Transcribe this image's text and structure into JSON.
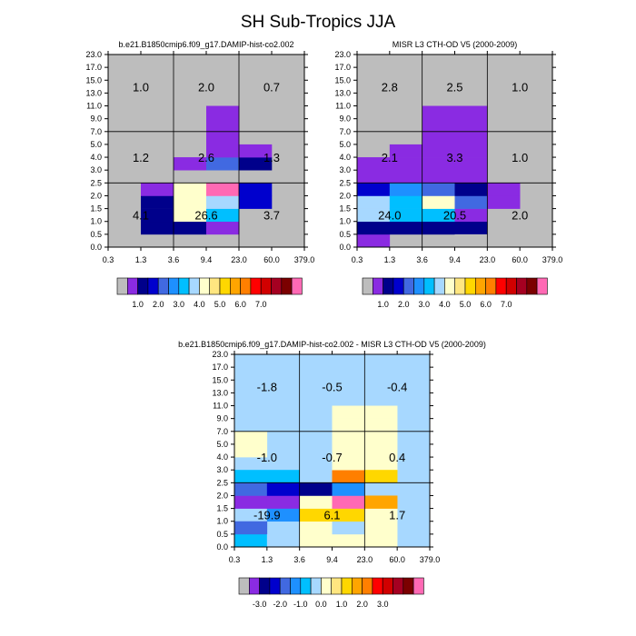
{
  "title": "SH Sub-Tropics JJA",
  "colorbar_top": {
    "colors": [
      "#bdbdbd",
      "#8a2be2",
      "#00008b",
      "#0000cd",
      "#4169e1",
      "#1e90ff",
      "#00bfff",
      "#a7d8ff",
      "#ffffcc",
      "#ffe680",
      "#ffd700",
      "#ffa500",
      "#ff7f00",
      "#ff0000",
      "#d10000",
      "#a50021",
      "#7b0000",
      "#ff69b4"
    ],
    "labels": [
      "1.0",
      "2.0",
      "3.0",
      "4.0",
      "5.0",
      "6.0",
      "7.0"
    ]
  },
  "colorbar_diff": {
    "colors": [
      "#bdbdbd",
      "#8a2be2",
      "#00008b",
      "#0000cd",
      "#4169e1",
      "#1e90ff",
      "#00bfff",
      "#a7d8ff",
      "#ffffcc",
      "#ffe680",
      "#ffd700",
      "#ffa500",
      "#ff7f00",
      "#ff0000",
      "#d10000",
      "#a50021",
      "#7b0000",
      "#ff69b4"
    ],
    "labels": [
      "-3.0",
      "-2.0",
      "-1.0",
      "0.0",
      "1.0",
      "2.0",
      "3.0"
    ]
  },
  "chart_data": [
    {
      "type": "heatmap",
      "title": "b.e21.B1850cmip6.f09_g17.DAMIP-hist-co2.002",
      "x_tick_labels": [
        "0.3",
        "1.3",
        "3.6",
        "9.4",
        "23.0",
        "60.0",
        "379.0"
      ],
      "y_tick_labels": [
        "0.0",
        "0.5",
        "1.0",
        "1.5",
        "2.0",
        "2.5",
        "3.0",
        "4.0",
        "5.0",
        "7.0",
        "9.0",
        "11.0",
        "13.0",
        "15.0",
        "17.0",
        "23.0"
      ],
      "background_color": "#bdbdbd",
      "cells": [
        {
          "x": 1,
          "y": 1,
          "w": 2,
          "h": 1,
          "color": "#00008b"
        },
        {
          "x": 1,
          "y": 2,
          "w": 1,
          "h": 1,
          "color": "#00008b"
        },
        {
          "x": 1,
          "y": 3,
          "w": 1,
          "h": 1,
          "color": "#00008b"
        },
        {
          "x": 1,
          "y": 4,
          "w": 1,
          "h": 1,
          "color": "#8a2be2"
        },
        {
          "x": 2,
          "y": 2,
          "w": 1,
          "h": 2,
          "color": "#ffffcc"
        },
        {
          "x": 2,
          "y": 4,
          "w": 1,
          "h": 1,
          "color": "#ffffcc"
        },
        {
          "x": 2,
          "y": 6,
          "w": 1,
          "h": 1,
          "color": "#8a2be2"
        },
        {
          "x": 3,
          "y": 1,
          "w": 1,
          "h": 1,
          "color": "#8a2be2"
        },
        {
          "x": 3,
          "y": 2,
          "w": 1,
          "h": 1,
          "color": "#00bfff"
        },
        {
          "x": 3,
          "y": 3,
          "w": 1,
          "h": 1,
          "color": "#a7d8ff"
        },
        {
          "x": 3,
          "y": 4,
          "w": 1,
          "h": 1,
          "color": "#ff69b4"
        },
        {
          "x": 3,
          "y": 6,
          "w": 1,
          "h": 1,
          "color": "#4169e1"
        },
        {
          "x": 3,
          "y": 7,
          "w": 1,
          "h": 4,
          "color": "#8a2be2"
        },
        {
          "x": 4,
          "y": 3,
          "w": 1,
          "h": 1,
          "color": "#0000cd"
        },
        {
          "x": 4,
          "y": 4,
          "w": 1,
          "h": 1,
          "color": "#0000cd"
        },
        {
          "x": 4,
          "y": 6,
          "w": 1,
          "h": 1,
          "color": "#00008b"
        },
        {
          "x": 4,
          "y": 7,
          "w": 1,
          "h": 1,
          "color": "#8a2be2"
        }
      ],
      "region_values": [
        {
          "col": 0,
          "row": 0,
          "value": "4.1"
        },
        {
          "col": 1,
          "row": 0,
          "value": "26.6"
        },
        {
          "col": 2,
          "row": 0,
          "value": "3.7"
        },
        {
          "col": 0,
          "row": 1,
          "value": "1.2"
        },
        {
          "col": 1,
          "row": 1,
          "value": "2.6"
        },
        {
          "col": 2,
          "row": 1,
          "value": "1.3"
        },
        {
          "col": 0,
          "row": 2,
          "value": "1.0"
        },
        {
          "col": 1,
          "row": 2,
          "value": "2.0"
        },
        {
          "col": 2,
          "row": 2,
          "value": "0.7"
        }
      ]
    },
    {
      "type": "heatmap",
      "title": "MISR L3 CTH-OD V5 (2000-2009)",
      "x_tick_labels": [
        "0.3",
        "1.3",
        "3.6",
        "9.4",
        "23.0",
        "60.0",
        "379.0"
      ],
      "y_tick_labels": [
        "0.0",
        "0.5",
        "1.0",
        "1.5",
        "2.0",
        "2.5",
        "3.0",
        "4.0",
        "5.0",
        "7.0",
        "9.0",
        "11.0",
        "13.0",
        "15.0",
        "17.0",
        "23.0"
      ],
      "background_color": "#bdbdbd",
      "cells": [
        {
          "x": 0,
          "y": 0,
          "w": 1,
          "h": 1,
          "color": "#8a2be2"
        },
        {
          "x": 0,
          "y": 1,
          "w": 4,
          "h": 1,
          "color": "#00008b"
        },
        {
          "x": 0,
          "y": 2,
          "w": 1,
          "h": 1,
          "color": "#a7d8ff"
        },
        {
          "x": 0,
          "y": 3,
          "w": 1,
          "h": 1,
          "color": "#a7d8ff"
        },
        {
          "x": 0,
          "y": 4,
          "w": 1,
          "h": 1,
          "color": "#0000cd"
        },
        {
          "x": 0,
          "y": 5,
          "w": 4,
          "h": 2,
          "color": "#8a2be2"
        },
        {
          "x": 1,
          "y": 2,
          "w": 1,
          "h": 1,
          "color": "#00bfff"
        },
        {
          "x": 1,
          "y": 3,
          "w": 1,
          "h": 1,
          "color": "#00bfff"
        },
        {
          "x": 1,
          "y": 4,
          "w": 1,
          "h": 1,
          "color": "#1e90ff"
        },
        {
          "x": 1,
          "y": 7,
          "w": 3,
          "h": 1,
          "color": "#8a2be2"
        },
        {
          "x": 2,
          "y": 2,
          "w": 1,
          "h": 1,
          "color": "#00bfff"
        },
        {
          "x": 2,
          "y": 3,
          "w": 1,
          "h": 1,
          "color": "#ffffcc"
        },
        {
          "x": 2,
          "y": 4,
          "w": 1,
          "h": 1,
          "color": "#4169e1"
        },
        {
          "x": 2,
          "y": 8,
          "w": 2,
          "h": 1,
          "color": "#8a2be2"
        },
        {
          "x": 2,
          "y": 9,
          "w": 2,
          "h": 2,
          "color": "#8a2be2"
        },
        {
          "x": 3,
          "y": 0,
          "w": 1,
          "h": 1,
          "color": "#bdbdbd"
        },
        {
          "x": 3,
          "y": 2,
          "w": 1,
          "h": 1,
          "color": "#8a2be2"
        },
        {
          "x": 3,
          "y": 3,
          "w": 1,
          "h": 1,
          "color": "#4169e1"
        },
        {
          "x": 3,
          "y": 4,
          "w": 1,
          "h": 1,
          "color": "#00008b"
        },
        {
          "x": 4,
          "y": 3,
          "w": 1,
          "h": 1,
          "color": "#8a2be2"
        },
        {
          "x": 4,
          "y": 4,
          "w": 1,
          "h": 1,
          "color": "#8a2be2"
        }
      ],
      "region_values": [
        {
          "col": 0,
          "row": 0,
          "value": "24.0"
        },
        {
          "col": 1,
          "row": 0,
          "value": "20.5"
        },
        {
          "col": 2,
          "row": 0,
          "value": "2.0"
        },
        {
          "col": 0,
          "row": 1,
          "value": "2.1"
        },
        {
          "col": 1,
          "row": 1,
          "value": "3.3"
        },
        {
          "col": 2,
          "row": 1,
          "value": "1.0"
        },
        {
          "col": 0,
          "row": 2,
          "value": "2.8"
        },
        {
          "col": 1,
          "row": 2,
          "value": "2.5"
        },
        {
          "col": 2,
          "row": 2,
          "value": "1.0"
        }
      ]
    },
    {
      "type": "heatmap",
      "title": "b.e21.B1850cmip6.f09_g17.DAMIP-hist-co2.002 - MISR L3 CTH-OD V5 (2000-2009)",
      "x_tick_labels": [
        "0.3",
        "1.3",
        "3.6",
        "9.4",
        "23.0",
        "60.0",
        "379.0"
      ],
      "y_tick_labels": [
        "0.0",
        "0.5",
        "1.0",
        "1.5",
        "2.0",
        "2.5",
        "3.0",
        "4.0",
        "5.0",
        "7.0",
        "9.0",
        "11.0",
        "13.0",
        "15.0",
        "17.0",
        "23.0"
      ],
      "background_color": "#a7d8ff",
      "cells": [
        {
          "x": 0,
          "y": 0,
          "w": 1,
          "h": 1,
          "color": "#00bfff"
        },
        {
          "x": 0,
          "y": 1,
          "w": 1,
          "h": 1,
          "color": "#4169e1"
        },
        {
          "x": 0,
          "y": 3,
          "w": 1,
          "h": 1,
          "color": "#8a2be2"
        },
        {
          "x": 0,
          "y": 4,
          "w": 1,
          "h": 1,
          "color": "#4169e1"
        },
        {
          "x": 0,
          "y": 5,
          "w": 2,
          "h": 1,
          "color": "#00bfff"
        },
        {
          "x": 0,
          "y": 7,
          "w": 1,
          "h": 2,
          "color": "#ffffcc"
        },
        {
          "x": 1,
          "y": 0,
          "w": 1,
          "h": 1,
          "color": "#a7d8ff"
        },
        {
          "x": 1,
          "y": 2,
          "w": 1,
          "h": 1,
          "color": "#1e90ff"
        },
        {
          "x": 1,
          "y": 3,
          "w": 1,
          "h": 1,
          "color": "#8a2be2"
        },
        {
          "x": 1,
          "y": 4,
          "w": 1,
          "h": 1,
          "color": "#0000cd"
        },
        {
          "x": 2,
          "y": 0,
          "w": 3,
          "h": 1,
          "color": "#ffffcc"
        },
        {
          "x": 2,
          "y": 1,
          "w": 1,
          "h": 1,
          "color": "#ffffcc"
        },
        {
          "x": 2,
          "y": 2,
          "w": 1,
          "h": 1,
          "color": "#ffd700"
        },
        {
          "x": 2,
          "y": 3,
          "w": 1,
          "h": 1,
          "color": "#ffffcc"
        },
        {
          "x": 2,
          "y": 4,
          "w": 1,
          "h": 1,
          "color": "#00008b"
        },
        {
          "x": 3,
          "y": 1,
          "w": 1,
          "h": 1,
          "color": "#a7d8ff"
        },
        {
          "x": 3,
          "y": 2,
          "w": 1,
          "h": 1,
          "color": "#ffd700"
        },
        {
          "x": 3,
          "y": 3,
          "w": 1,
          "h": 1,
          "color": "#ff69b4"
        },
        {
          "x": 3,
          "y": 4,
          "w": 1,
          "h": 1,
          "color": "#1e90ff"
        },
        {
          "x": 3,
          "y": 5,
          "w": 1,
          "h": 1,
          "color": "#ff7f00"
        },
        {
          "x": 3,
          "y": 6,
          "w": 2,
          "h": 4,
          "color": "#ffffcc"
        },
        {
          "x": 3,
          "y": 10,
          "w": 1,
          "h": 1,
          "color": "#ffffcc"
        },
        {
          "x": 4,
          "y": 1,
          "w": 1,
          "h": 1,
          "color": "#ffffcc"
        },
        {
          "x": 4,
          "y": 2,
          "w": 1,
          "h": 1,
          "color": "#ffffcc"
        },
        {
          "x": 4,
          "y": 3,
          "w": 1,
          "h": 1,
          "color": "#ffa500"
        },
        {
          "x": 4,
          "y": 5,
          "w": 1,
          "h": 1,
          "color": "#ffd700"
        },
        {
          "x": 4,
          "y": 10,
          "w": 1,
          "h": 1,
          "color": "#ffffcc"
        }
      ],
      "region_values": [
        {
          "col": 0,
          "row": 0,
          "value": "-19.9"
        },
        {
          "col": 1,
          "row": 0,
          "value": "6.1"
        },
        {
          "col": 2,
          "row": 0,
          "value": "1.7"
        },
        {
          "col": 0,
          "row": 1,
          "value": "-1.0"
        },
        {
          "col": 1,
          "row": 1,
          "value": "-0.7"
        },
        {
          "col": 2,
          "row": 1,
          "value": "0.4"
        },
        {
          "col": 0,
          "row": 2,
          "value": "-1.8"
        },
        {
          "col": 1,
          "row": 2,
          "value": "-0.5"
        },
        {
          "col": 2,
          "row": 2,
          "value": "-0.4"
        }
      ]
    }
  ]
}
